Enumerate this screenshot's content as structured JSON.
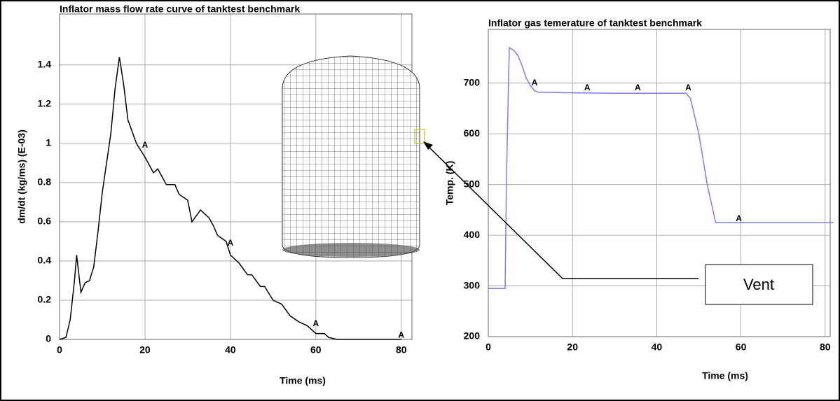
{
  "chart_data": [
    {
      "type": "line",
      "title": "Inflator mass flow rate curve of tanktest benchmark",
      "x_label": "Time (ms)",
      "y_label": "dm/dt (kg/ms) (E-03)",
      "x": [
        0,
        1.5,
        2.5,
        3.5,
        4,
        5,
        6,
        7,
        8,
        9,
        10,
        11,
        12,
        13,
        14,
        15,
        16,
        18,
        20,
        22,
        23,
        25,
        27,
        28,
        30,
        31,
        33,
        35,
        36,
        37,
        39,
        40,
        42,
        43,
        44,
        45,
        47,
        48,
        50,
        52,
        54,
        56,
        58,
        60,
        62,
        63,
        65,
        80
      ],
      "values": [
        0,
        0.01,
        0.1,
        0.3,
        0.43,
        0.24,
        0.29,
        0.3,
        0.37,
        0.55,
        0.75,
        0.9,
        1.05,
        1.28,
        1.44,
        1.3,
        1.12,
        1.0,
        0.93,
        0.85,
        0.87,
        0.79,
        0.79,
        0.74,
        0.71,
        0.6,
        0.66,
        0.62,
        0.58,
        0.53,
        0.5,
        0.43,
        0.39,
        0.36,
        0.33,
        0.33,
        0.27,
        0.27,
        0.2,
        0.18,
        0.12,
        0.09,
        0.07,
        0.03,
        0.03,
        0.01,
        0,
        0
      ],
      "color": "#000000",
      "annotations": [
        {
          "text": "A",
          "x": 20,
          "y": 0.99
        },
        {
          "text": "A",
          "x": 40,
          "y": 0.49
        },
        {
          "text": "A",
          "x": 60,
          "y": 0.08
        },
        {
          "text": "A",
          "x": 80,
          "y": 0.02
        }
      ],
      "xlim": [
        0,
        82.5
      ],
      "ylim": [
        0,
        1.66
      ],
      "xticks": [
        0,
        20,
        40,
        60,
        80
      ],
      "yticks": [
        0,
        0.2,
        0.4,
        0.6,
        0.8,
        1,
        1.2,
        1.4
      ],
      "grid": true
    },
    {
      "type": "line",
      "title": "Inflator gas temerature of tanktest benchmark",
      "x_label": "Time (ms)",
      "y_label": "Temp. (K)",
      "x": [
        0,
        4,
        4.3,
        4.8,
        5,
        6,
        7,
        8,
        9,
        10,
        11,
        12,
        20,
        30,
        40,
        47,
        48,
        50,
        52,
        54,
        82
      ],
      "values": [
        295,
        295,
        500,
        700,
        770,
        765,
        755,
        735,
        710,
        695,
        685,
        682,
        681,
        680,
        680,
        680,
        670,
        600,
        500,
        425,
        425
      ],
      "color": "#7b7bff",
      "annotations": [
        {
          "text": "A",
          "x": 11,
          "y": 700
        },
        {
          "text": "A",
          "x": 23.5,
          "y": 690
        },
        {
          "text": "A",
          "x": 35.5,
          "y": 690
        },
        {
          "text": "A",
          "x": 47.5,
          "y": 690
        },
        {
          "text": "A",
          "x": 59.5,
          "y": 432
        }
      ],
      "xlim": [
        0,
        81.2
      ],
      "ylim": [
        200,
        806
      ],
      "xticks": [
        0,
        20,
        40,
        60,
        80
      ],
      "yticks": [
        200,
        300,
        400,
        500,
        600,
        700
      ],
      "grid": true
    }
  ],
  "callout": {
    "text": "Vent"
  }
}
